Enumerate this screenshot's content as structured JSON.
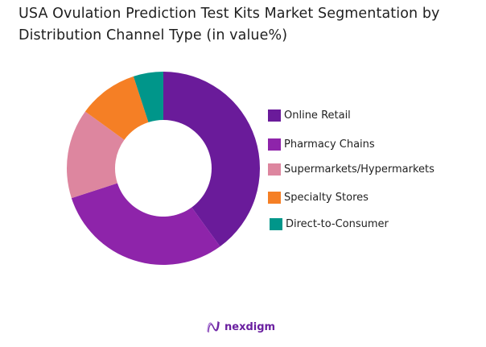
{
  "header": {
    "title_line1": "USA Ovulation Prediction Test Kits Market Segmentation by",
    "title_line2": "Distribution Channel Type (in value%)"
  },
  "chart_data": {
    "type": "pie",
    "subtype": "donut",
    "title": "USA Ovulation Prediction Test Kits Market Segmentation by Distribution Channel Type (in value%)",
    "categories": [
      "Online Retail",
      "Pharmacy Chains",
      "Supermarkets/Hypermarkets",
      "Specialty Stores",
      "Direct-to-Consumer"
    ],
    "values": [
      40,
      30,
      15,
      10,
      5
    ],
    "colors": [
      "#6a1b9a",
      "#8e24aa",
      "#dd869f",
      "#f57f25",
      "#00968a"
    ],
    "unit": "%",
    "legend_position": "right",
    "start_angle": "top, clockwise",
    "data_labels": false
  },
  "legend": {
    "items": [
      {
        "label": "Online Retail",
        "color": "#6a1b9a"
      },
      {
        "label": "Pharmacy Chains",
        "color": "#8e24aa"
      },
      {
        "label": "Supermarkets/Hypermarkets",
        "color": "#dd869f"
      },
      {
        "label": "Specialty Stores",
        "color": "#f57f25"
      },
      {
        "label": "Direct-to-Consumer",
        "color": "#00968a"
      }
    ]
  },
  "footer": {
    "brand": "nexdigm",
    "brand_icon": "nexdigm-wave-logo-icon"
  }
}
